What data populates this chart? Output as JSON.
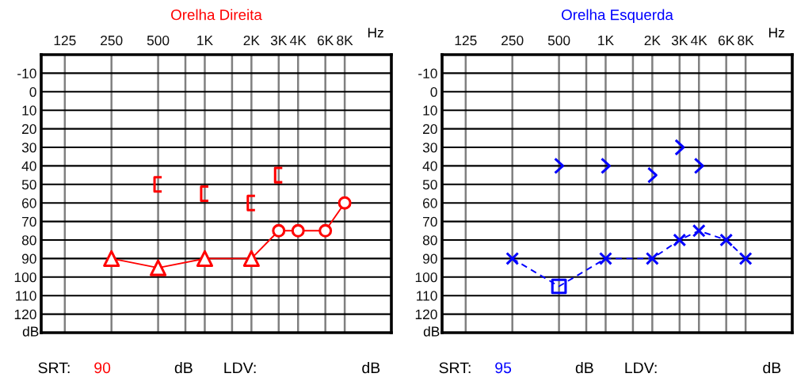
{
  "chart_data": [
    {
      "type": "line",
      "title": "Orelha Direita",
      "xlabel": "Hz",
      "ylabel": "dB",
      "log": "x",
      "xlim": [
        88,
        16000
      ],
      "ylim": [
        130,
        -20
      ],
      "xticks": [
        125,
        250,
        500,
        {
          "value": 750,
          "label": null
        },
        {
          "value": 1000,
          "label": "1K"
        },
        {
          "value": 1500,
          "label": null
        },
        {
          "value": 2000,
          "label": "2K"
        },
        {
          "value": 3000,
          "label": "3K"
        },
        {
          "value": 4000,
          "label": "4K"
        },
        {
          "value": 6000,
          "label": "6K"
        },
        {
          "value": 8000,
          "label": "8K"
        }
      ],
      "yticks": [
        -10,
        0,
        10,
        20,
        30,
        40,
        50,
        60,
        70,
        80,
        90,
        100,
        110,
        120
      ],
      "grid": true,
      "annotations": [
        "SRT:",
        "90",
        "dB",
        "LDV:",
        "dB"
      ],
      "series": [
        {
          "color": "#ff0000",
          "marker": "none",
          "line_style": "solid",
          "x": [
            250,
            500,
            1000,
            2000,
            3000,
            4000,
            6000,
            8000
          ],
          "values": [
            90,
            95,
            90,
            90,
            75,
            75,
            75,
            60
          ]
        },
        {
          "type": "scatter",
          "color": "#ff0000",
          "marker": "triangle",
          "x": [
            250,
            500,
            1000,
            2000
          ],
          "values": [
            90,
            95,
            90,
            90
          ]
        },
        {
          "type": "scatter",
          "color": "#ff0000",
          "marker": "circle",
          "x": [
            3000,
            4000,
            6000,
            8000
          ],
          "values": [
            75,
            75,
            75,
            60
          ]
        },
        {
          "type": "scatter",
          "color": "#ff0000",
          "x": [
            500,
            1000,
            2000,
            3000
          ],
          "values": [
            50,
            55,
            60,
            45
          ]
        }
      ]
    },
    {
      "type": "line",
      "title": "Orelha Esquerda",
      "xlabel": "Hz",
      "ylabel": "dB",
      "log": "x",
      "xlim": [
        88,
        16000
      ],
      "ylim": [
        130,
        -20
      ],
      "xticks": [
        125,
        250,
        500,
        {
          "value": 750,
          "label": null
        },
        {
          "value": 1000,
          "label": "1K"
        },
        {
          "value": 1500,
          "label": null
        },
        {
          "value": 2000,
          "label": "2K"
        },
        {
          "value": 3000,
          "label": "3K"
        },
        {
          "value": 4000,
          "label": "4K"
        },
        {
          "value": 6000,
          "label": "6K"
        },
        {
          "value": 8000,
          "label": "8K"
        }
      ],
      "yticks": [
        -10,
        0,
        10,
        20,
        30,
        40,
        50,
        60,
        70,
        80,
        90,
        100,
        110,
        120
      ],
      "grid": true,
      "annotations": [
        "SRT:",
        "95",
        "dB",
        "LDV:",
        "dB"
      ],
      "series": [
        {
          "color": "#0000ff",
          "marker": "none",
          "line_style": "dashed",
          "x": [
            250,
            500,
            1000,
            2000,
            3000,
            4000,
            6000,
            8000
          ],
          "values": [
            90,
            105,
            90,
            90,
            80,
            75,
            80,
            90
          ]
        },
        {
          "type": "scatter",
          "color": "#0000ff",
          "marker": "cross",
          "x": [
            250,
            1000,
            2000,
            3000,
            4000,
            6000,
            8000
          ],
          "values": [
            90,
            90,
            90,
            80,
            75,
            80,
            90
          ]
        },
        {
          "type": "scatter",
          "color": "#0000ff",
          "marker": "square",
          "x": [
            500
          ],
          "values": [
            105
          ]
        },
        {
          "type": "scatter",
          "color": "#0000ff",
          "x": [
            500,
            1000,
            2000,
            3000,
            4000
          ],
          "values": [
            40,
            40,
            45,
            30,
            40
          ]
        }
      ]
    }
  ]
}
